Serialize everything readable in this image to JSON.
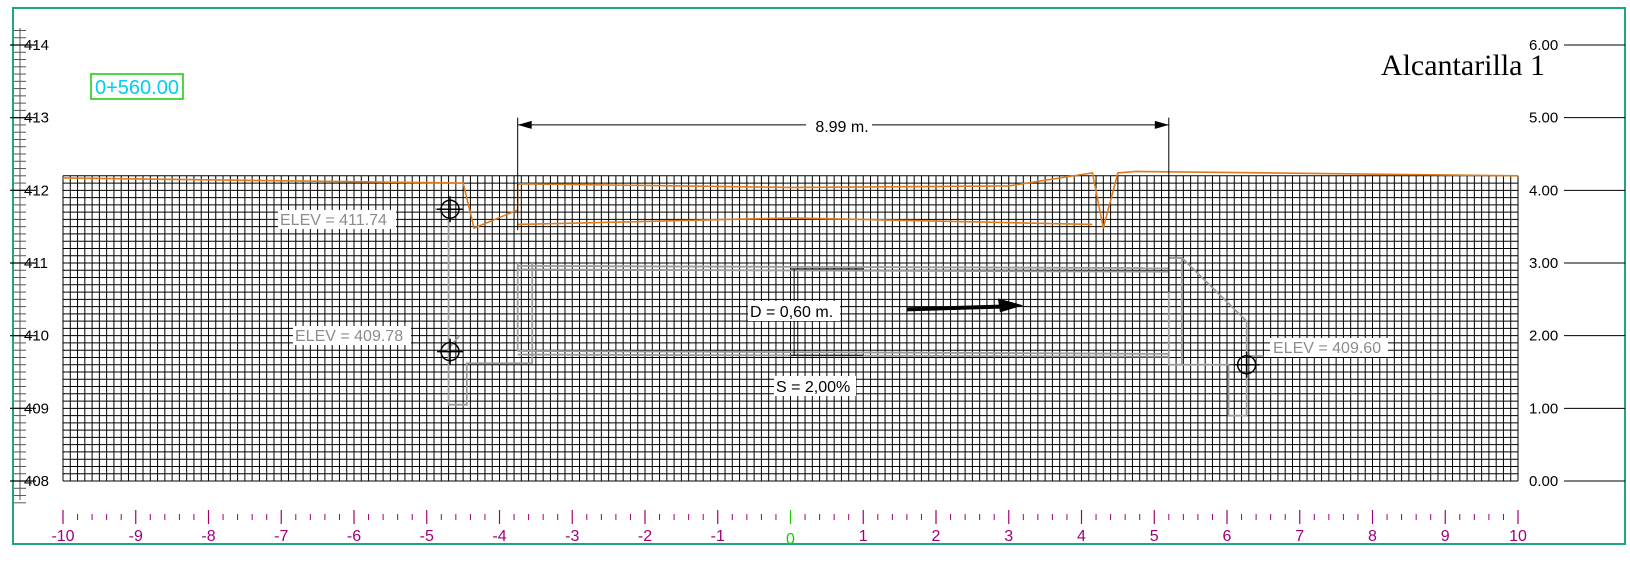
{
  "title": "Alcantarilla 1",
  "station": "0+560.00",
  "dimension": {
    "label": "8.99 m."
  },
  "diameter_label": "D = 0,60 m.",
  "slope_label": "S = 2,00%",
  "elevations": {
    "top_left": "ELEV = 411.74",
    "inlet": "ELEV = 409.78",
    "outlet": "ELEV = 409.60"
  },
  "axes": {
    "left_ticks": [
      "408",
      "409",
      "410",
      "411",
      "412",
      "413",
      "414"
    ],
    "right_ticks": [
      "0.00",
      "1.00",
      "2.00",
      "3.00",
      "4.00",
      "5.00",
      "6.00"
    ],
    "bottom_ticks": [
      "-10",
      "-9",
      "-8",
      "-7",
      "-6",
      "-5",
      "-4",
      "-3",
      "-2",
      "-1",
      "0",
      "1",
      "2",
      "3",
      "4",
      "5",
      "6",
      "7",
      "8",
      "9",
      "10"
    ]
  },
  "colors": {
    "border": "#1fa77a",
    "grid": "#000000",
    "terrain": "#e07b1c",
    "structure": "#9a9a9a",
    "x_labels": "#a0007a",
    "x_zero": "#16c800",
    "station_text": "#00cfe8",
    "station_box": "#16c800"
  },
  "chart_data": {
    "type": "line",
    "xlabel": "",
    "ylabel": "",
    "xlim": [
      -10,
      10
    ],
    "ylim": [
      408,
      414
    ],
    "series": [
      {
        "x": [
          -10,
          -4.5,
          -4.35,
          -3.75,
          -3.75,
          0,
          3,
          4.15,
          4.3,
          4.5,
          4.75,
          10
        ],
        "y": [
          412.17,
          412.1,
          411.48,
          411.73,
          412.09,
          412.04,
          412.06,
          412.24,
          411.48,
          412.24,
          412.26,
          412.2
        ]
      },
      {
        "x": [
          -3.75,
          0,
          4.15
        ],
        "y": [
          411.53,
          411.62,
          411.53
        ]
      }
    ]
  }
}
